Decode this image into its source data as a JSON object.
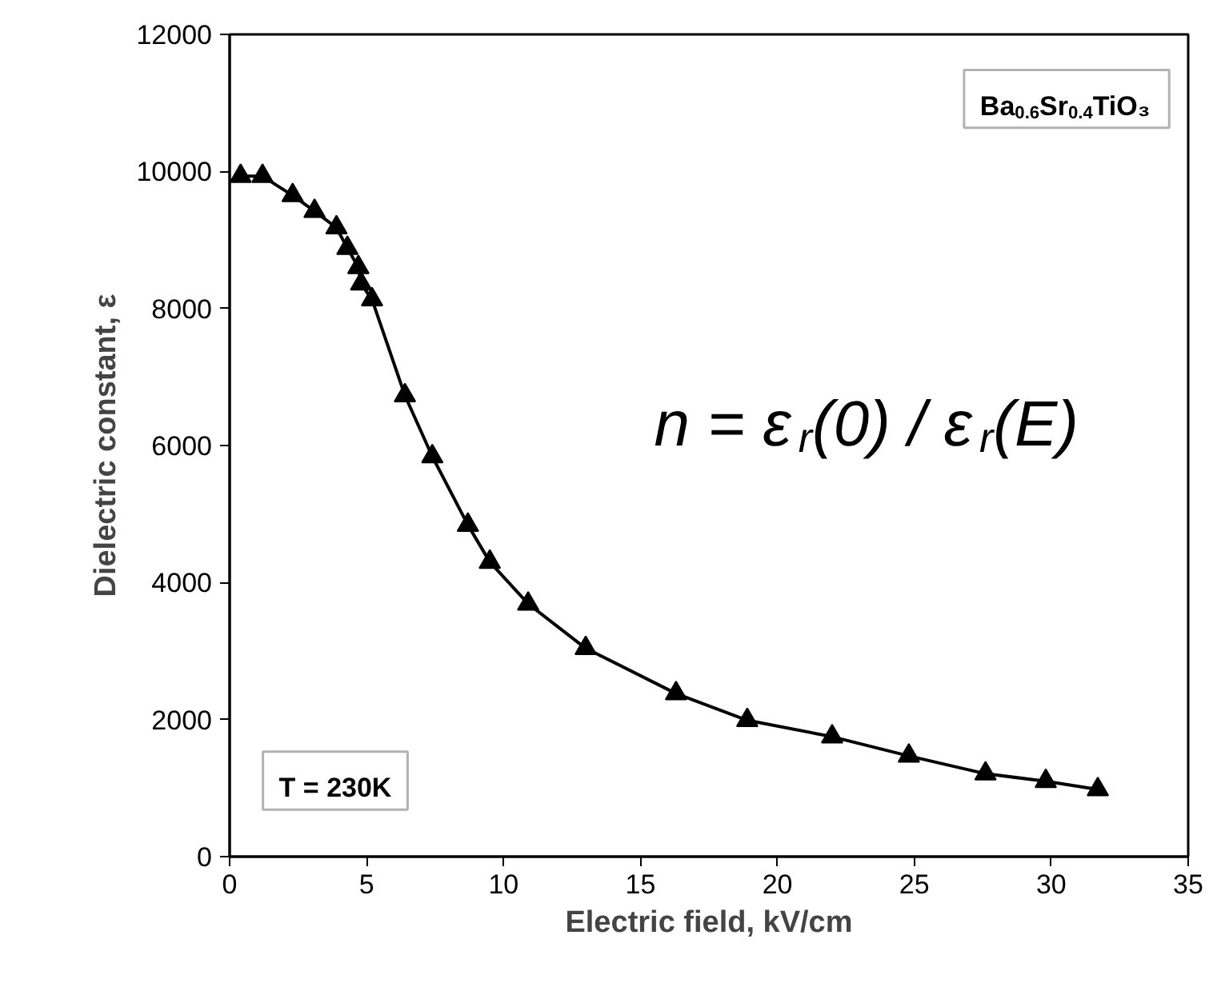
{
  "chart_data": {
    "type": "line",
    "xlabel": "Electric field, kV/cm",
    "ylabel": "Dielectric constant, ε",
    "x": [
      0.4,
      1.2,
      2.3,
      3.1,
      3.9,
      4.3,
      4.7,
      4.8,
      5.2,
      6.4,
      7.4,
      8.7,
      9.5,
      10.9,
      13.0,
      16.3,
      18.9,
      22.0,
      24.8,
      27.6,
      29.8,
      31.7
    ],
    "series": [
      {
        "color": "#000000",
        "values": [
          9930,
          9930,
          9650,
          9420,
          9180,
          8880,
          8600,
          8360,
          8130,
          6730,
          5840,
          4840,
          4300,
          3690,
          3040,
          2380,
          1990,
          1750,
          1470,
          1210,
          1100,
          980
        ]
      }
    ],
    "xlim": [
      0,
      35
    ],
    "ylim": [
      0,
      12000
    ],
    "xticks": [
      0,
      5,
      10,
      15,
      20,
      25,
      30,
      35
    ],
    "yticks": [
      0,
      2000,
      4000,
      6000,
      8000,
      10000,
      12000
    ],
    "marker": "triangle",
    "line_style": "solid",
    "grid": false,
    "annotations": [
      "Ba$_{0.6}$Sr$_{0.4}$TiO₃",
      "n = ε$_{r}$(0) / ε$_{r}$(E)",
      "T = 230K"
    ]
  }
}
